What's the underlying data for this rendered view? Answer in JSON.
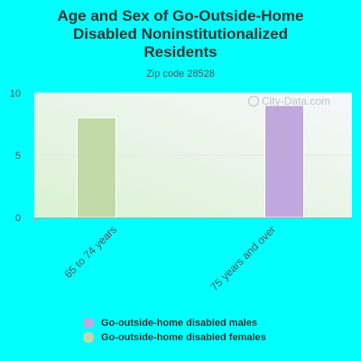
{
  "chart_data": {
    "type": "bar",
    "title_lines": [
      "Age and Sex of Go-Outside-Home",
      "Disabled Noninstitutionalized",
      "Residents"
    ],
    "subtitle": "Zip code 28528",
    "categories": [
      "65 to 74 years",
      "75 years and over"
    ],
    "series": [
      {
        "name": "Go-outside-home disabled males",
        "color": "#c0a8dc",
        "values": [
          0,
          9
        ]
      },
      {
        "name": "Go-outside-home disabled females",
        "color": "#c2d9a8",
        "values": [
          8,
          0
        ]
      }
    ],
    "yticks": [
      0,
      5,
      10
    ],
    "ylim": [
      0,
      10
    ],
    "grid": true,
    "legend_position": "bottom"
  },
  "watermark": "City-Data.com"
}
